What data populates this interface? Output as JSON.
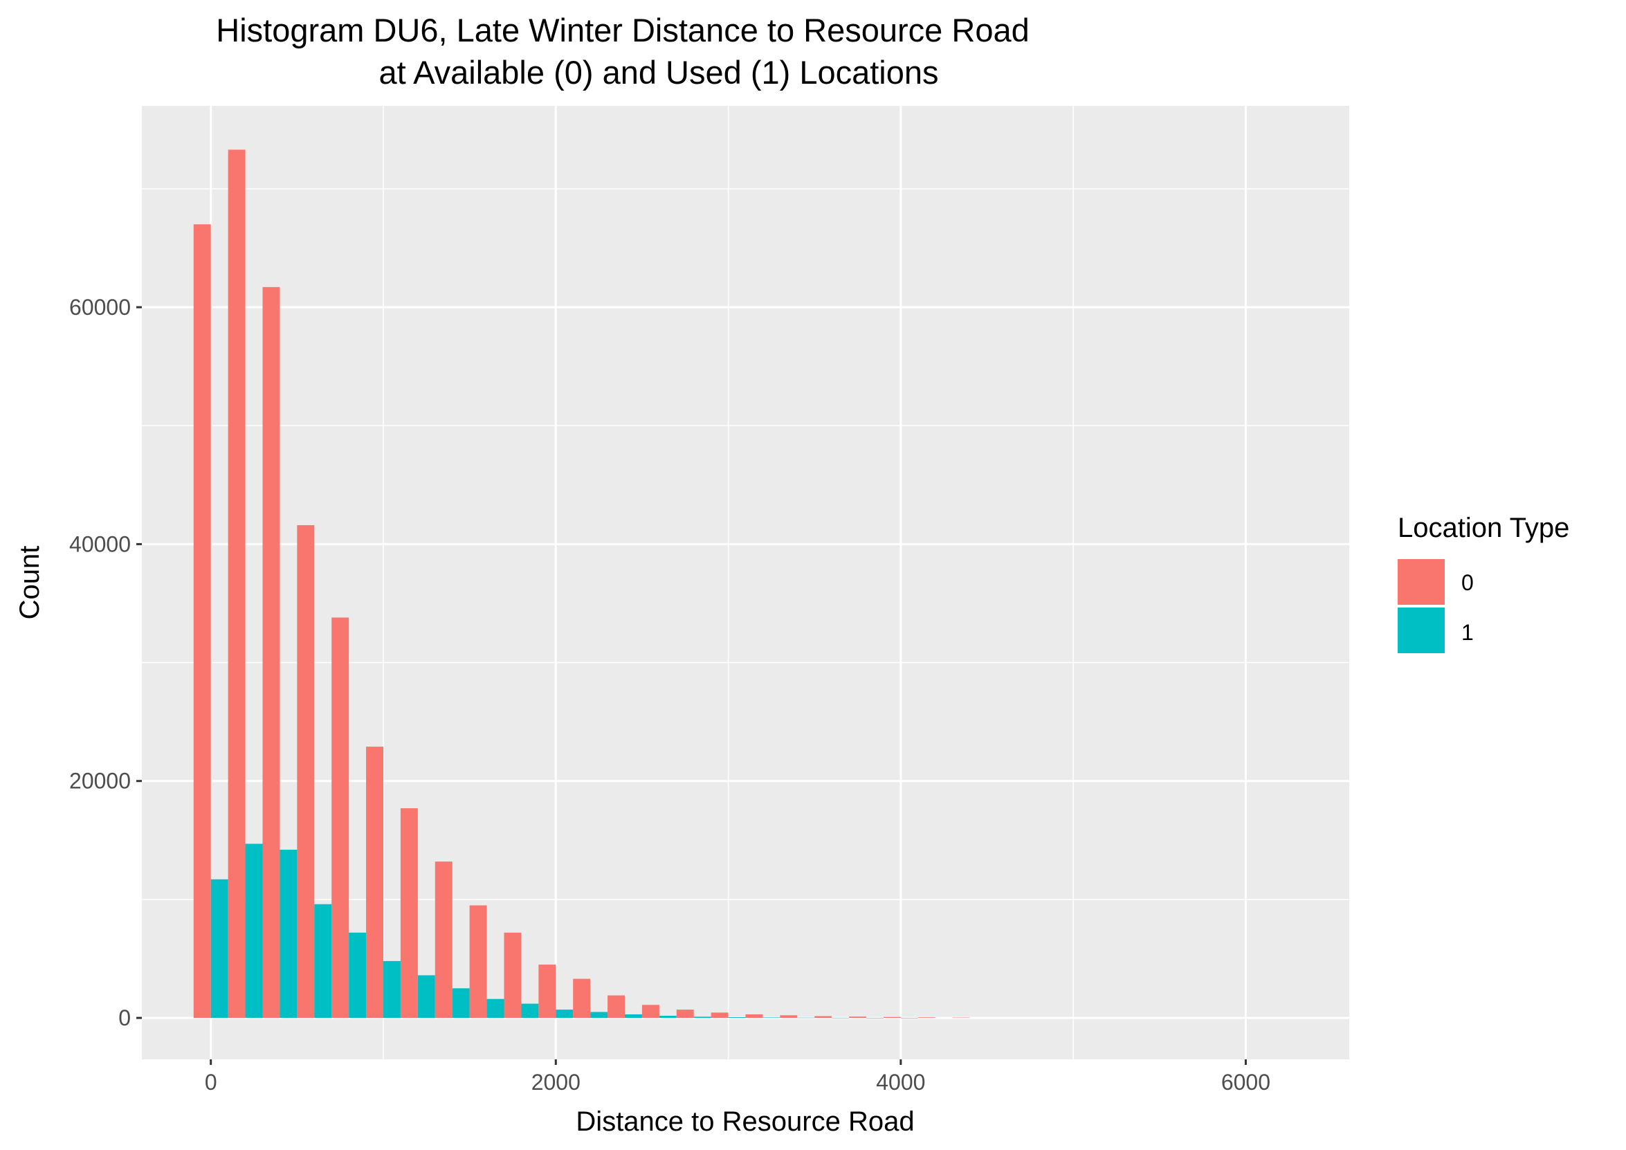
{
  "chart_data": {
    "type": "bar",
    "title": [
      "Histogram DU6, Late Winter Distance to Resource Road",
      "at Available (0) and Used (1) Locations"
    ],
    "xlabel": "Distance to Resource Road",
    "ylabel": "Count",
    "xlim": [
      -400,
      6600
    ],
    "ylim": [
      -3500,
      77000
    ],
    "x_ticks": [
      0,
      2000,
      4000,
      6000
    ],
    "x_tick_labels": [
      "0",
      "2000",
      "4000",
      "6000"
    ],
    "x_minor_breaks": [
      1000,
      3000,
      5000
    ],
    "y_ticks": [
      0,
      20000,
      40000,
      60000
    ],
    "y_tick_labels": [
      "0",
      "20000",
      "40000",
      "60000"
    ],
    "y_minor_breaks": [
      10000,
      30000,
      50000,
      70000
    ],
    "grid": true,
    "bin_width": 200,
    "bin_centers": [
      0,
      200,
      400,
      600,
      800,
      1000,
      1200,
      1400,
      1600,
      1800,
      2000,
      2200,
      2400,
      2600,
      2800,
      3000,
      3200,
      3400,
      3600,
      3800,
      4000,
      4200,
      4400
    ],
    "legend": {
      "title": "Location Type",
      "position": "right"
    },
    "series": [
      {
        "name": "0",
        "color": "#F8766D",
        "values": [
          67000,
          73300,
          61700,
          41600,
          33800,
          22900,
          17700,
          13200,
          9500,
          7200,
          4500,
          3300,
          1900,
          1100,
          700,
          450,
          300,
          220,
          150,
          110,
          80,
          50,
          30
        ]
      },
      {
        "name": "1",
        "color": "#00BFC4",
        "values": [
          11700,
          14700,
          14200,
          9600,
          7200,
          4800,
          3600,
          2500,
          1600,
          1200,
          700,
          500,
          300,
          180,
          100,
          60,
          40,
          20,
          10,
          5,
          3,
          0,
          0
        ]
      }
    ]
  }
}
